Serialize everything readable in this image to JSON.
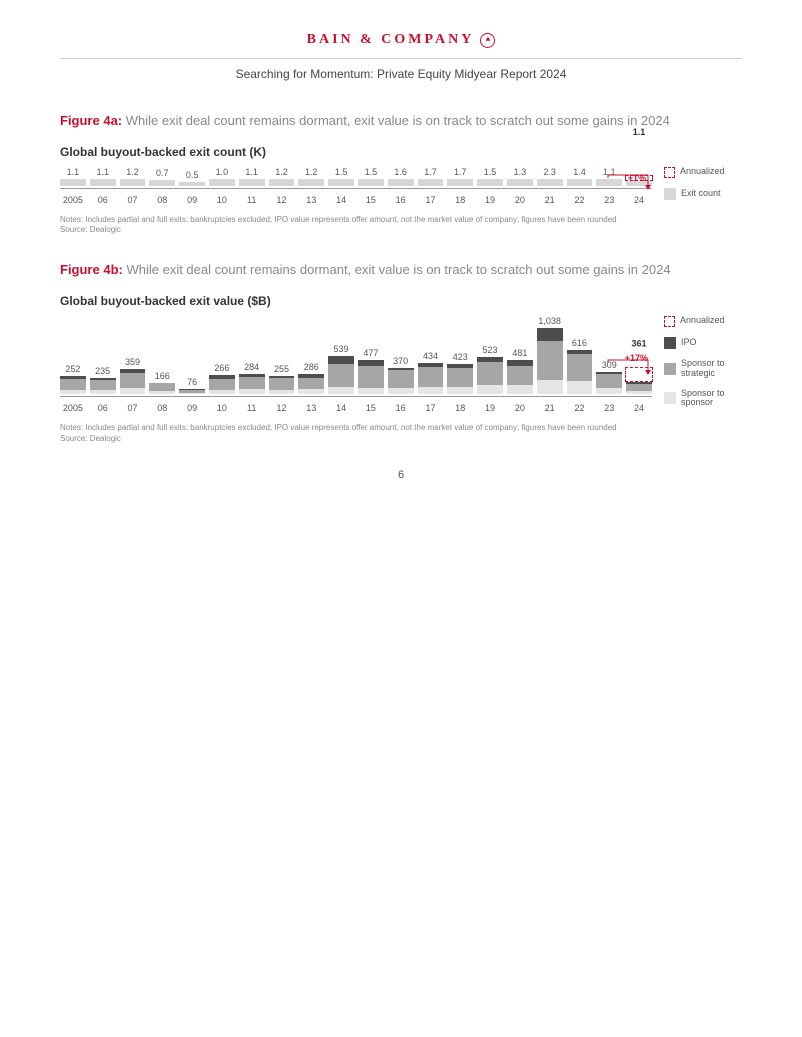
{
  "brand": "BAIN & COMPANY",
  "subtitle": "Searching for Momentum: Private Equity Midyear Report 2024",
  "page_number": "6",
  "colors": {
    "brand_red": "#c8102e",
    "bar_light": "#d7d7d7",
    "bar_mid": "#a6a6a6",
    "bar_dark": "#6f6f6f",
    "bar_darker": "#4d4d4d",
    "text_grey": "#888888"
  },
  "chart_a": {
    "figure_label": "Figure 4a:",
    "figure_caption": "While exit deal count remains dormant, exit value is on track to scratch out some gains in 2024",
    "title": "Global buyout-backed exit count (K)",
    "y_max": 2.5,
    "pct_change": "+1%",
    "legend": [
      {
        "label": "Annualized",
        "swatch": "dashed"
      },
      {
        "label": "Exit count",
        "color": "#d7d7d7"
      }
    ],
    "bars": [
      {
        "x": "2005",
        "label": "1.1",
        "value": 1.1,
        "solid": 1.1
      },
      {
        "x": "06",
        "label": "1.1",
        "value": 1.1,
        "solid": 1.1
      },
      {
        "x": "07",
        "label": "1.2",
        "value": 1.2,
        "solid": 1.2
      },
      {
        "x": "08",
        "label": "0.7",
        "value": 0.7,
        "solid": 0.7
      },
      {
        "x": "09",
        "label": "0.5",
        "value": 0.5,
        "solid": 0.5
      },
      {
        "x": "10",
        "label": "1.0",
        "value": 1.0,
        "solid": 1.0
      },
      {
        "x": "11",
        "label": "1.1",
        "value": 1.1,
        "solid": 1.1
      },
      {
        "x": "12",
        "label": "1.2",
        "value": 1.2,
        "solid": 1.2
      },
      {
        "x": "13",
        "label": "1.2",
        "value": 1.2,
        "solid": 1.2
      },
      {
        "x": "14",
        "label": "1.5",
        "value": 1.5,
        "solid": 1.5
      },
      {
        "x": "15",
        "label": "1.5",
        "value": 1.5,
        "solid": 1.5
      },
      {
        "x": "16",
        "label": "1.6",
        "value": 1.6,
        "solid": 1.6
      },
      {
        "x": "17",
        "label": "1.7",
        "value": 1.7,
        "solid": 1.7
      },
      {
        "x": "18",
        "label": "1.7",
        "value": 1.7,
        "solid": 1.7
      },
      {
        "x": "19",
        "label": "1.5",
        "value": 1.5,
        "solid": 1.5
      },
      {
        "x": "20",
        "label": "1.3",
        "value": 1.3,
        "solid": 1.3
      },
      {
        "x": "21",
        "label": "2.3",
        "value": 2.3,
        "solid": 2.3
      },
      {
        "x": "22",
        "label": "1.4",
        "value": 1.4,
        "solid": 1.4
      },
      {
        "x": "23",
        "label": "1.1",
        "value": 1.1,
        "solid": 1.1
      },
      {
        "x": "24",
        "label": "1.1",
        "value": 1.1,
        "solid": 0.55,
        "annualized": 0.55,
        "bold": true
      }
    ],
    "notes": "Notes: Includes partial and full exits; bankruptcies excluded; IPO value represents offer amount, not the market value of company; figures have been rounded",
    "source": "Source: Dealogic"
  },
  "chart_b": {
    "figure_label": "Figure 4b:",
    "figure_caption": "While exit deal count remains dormant, exit value is on track to scratch out some gains in 2024",
    "title": "Global buyout-backed exit value ($B)",
    "y_max": 1100,
    "pct_change": "+17%",
    "legend": [
      {
        "label": "Annualized",
        "swatch": "dashed"
      },
      {
        "label": "IPO",
        "color": "#4d4d4d"
      },
      {
        "label": "Sponsor to strategic",
        "color": "#a6a6a6"
      },
      {
        "label": "Sponsor to sponsor",
        "color": "#e5e5e5"
      }
    ],
    "bars": [
      {
        "x": "2005",
        "label": "252",
        "total": 252,
        "segs": [
          60,
          155,
          37
        ]
      },
      {
        "x": "06",
        "label": "235",
        "total": 235,
        "segs": [
          55,
          140,
          40
        ]
      },
      {
        "x": "07",
        "label": "359",
        "total": 359,
        "segs": [
          95,
          210,
          54
        ]
      },
      {
        "x": "08",
        "label": "166",
        "total": 166,
        "segs": [
          45,
          110,
          11
        ]
      },
      {
        "x": "09",
        "label": "76",
        "total": 76,
        "segs": [
          18,
          45,
          13
        ]
      },
      {
        "x": "10",
        "label": "266",
        "total": 266,
        "segs": [
          63,
          158,
          45
        ]
      },
      {
        "x": "11",
        "label": "284",
        "total": 284,
        "segs": [
          70,
          175,
          39
        ]
      },
      {
        "x": "12",
        "label": "255",
        "total": 255,
        "segs": [
          68,
          160,
          27
        ]
      },
      {
        "x": "13",
        "label": "286",
        "total": 286,
        "segs": [
          75,
          160,
          51
        ]
      },
      {
        "x": "14",
        "label": "539",
        "total": 539,
        "segs": [
          110,
          315,
          114
        ]
      },
      {
        "x": "15",
        "label": "477",
        "total": 477,
        "segs": [
          95,
          300,
          82
        ]
      },
      {
        "x": "16",
        "label": "370",
        "total": 370,
        "segs": [
          90,
          245,
          35
        ]
      },
      {
        "x": "17",
        "label": "434",
        "total": 434,
        "segs": [
          100,
          280,
          54
        ]
      },
      {
        "x": "18",
        "label": "423",
        "total": 423,
        "segs": [
          105,
          265,
          53
        ]
      },
      {
        "x": "19",
        "label": "523",
        "total": 523,
        "segs": [
          135,
          320,
          68
        ]
      },
      {
        "x": "20",
        "label": "481",
        "total": 481,
        "segs": [
          135,
          268,
          78
        ]
      },
      {
        "x": "21",
        "label": "1,038",
        "total": 1038,
        "segs": [
          220,
          620,
          198
        ]
      },
      {
        "x": "22",
        "label": "616",
        "total": 616,
        "segs": [
          190,
          380,
          46
        ]
      },
      {
        "x": "23",
        "label": "309",
        "total": 309,
        "segs": [
          95,
          185,
          29
        ]
      },
      {
        "x": "24",
        "label": "361",
        "total": 361,
        "segs": [
          50,
          100,
          30
        ],
        "annualized": 181,
        "bold": true
      }
    ],
    "notes": "Notes: Includes partial and full exits; bankruptcies excluded; IPO value represents offer amount, not the market value of company; figures have been rounded",
    "source": "Source: Dealogic"
  }
}
